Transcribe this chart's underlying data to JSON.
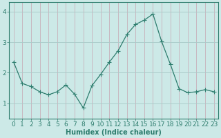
{
  "x": [
    0,
    1,
    2,
    3,
    4,
    5,
    6,
    7,
    8,
    9,
    10,
    11,
    12,
    13,
    14,
    15,
    16,
    17,
    18,
    19,
    20,
    21,
    22,
    23
  ],
  "y": [
    2.35,
    1.65,
    1.55,
    1.38,
    1.28,
    1.38,
    1.6,
    1.3,
    0.85,
    1.58,
    1.95,
    2.35,
    2.72,
    3.25,
    3.58,
    3.72,
    3.92,
    3.02,
    2.28,
    1.48,
    1.35,
    1.38,
    1.45,
    1.38
  ],
  "line_color": "#2e7d6e",
  "marker": "+",
  "marker_size": 4,
  "bg_color": "#cce9e7",
  "hgrid_color": "#aaccca",
  "vgrid_color": "#c8b8c0",
  "axis_color": "#2e7d6e",
  "tick_color": "#2e7d6e",
  "xlabel": "Humidex (Indice chaleur)",
  "xlabel_fontsize": 7,
  "tick_fontsize": 6.5,
  "ylim": [
    0.5,
    4.3
  ],
  "xlim": [
    -0.5,
    23.5
  ],
  "yticks": [
    1,
    2,
    3,
    4
  ],
  "xticks": [
    0,
    1,
    2,
    3,
    4,
    5,
    6,
    7,
    8,
    9,
    10,
    11,
    12,
    13,
    14,
    15,
    16,
    17,
    18,
    19,
    20,
    21,
    22,
    23
  ]
}
